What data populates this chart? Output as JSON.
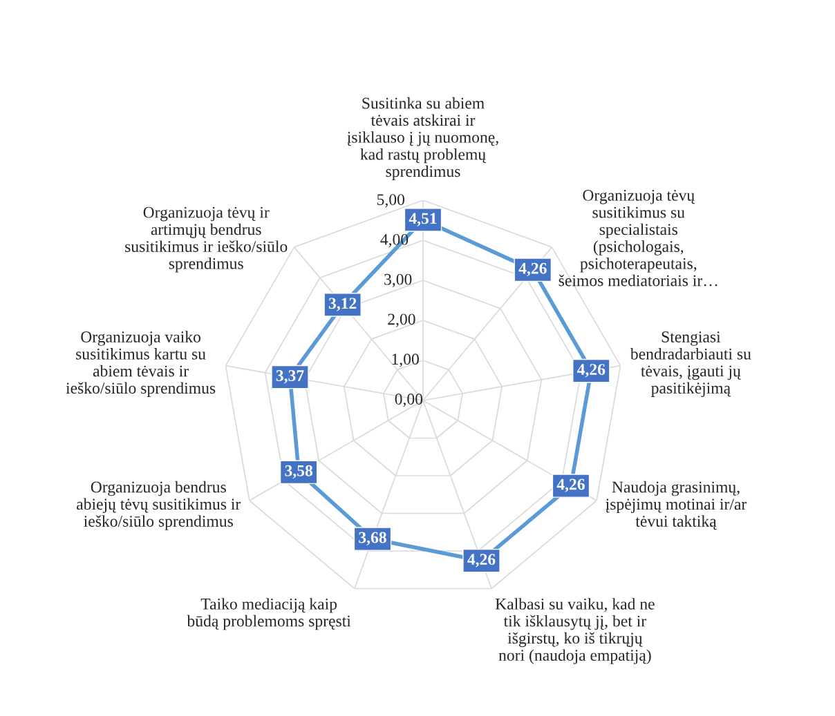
{
  "chart_data": {
    "type": "radar",
    "categories": [
      "Susitinka su abiem\ntėvais atskirai ir\nįsiklauso į jų nuomonę,\nkad rastų problemų\nsprendimus",
      "Organizuoja tėvų\nsusitikimus su\nspecialistais\n(psichologais,\npsichoterapeutais,\nšeimos mediatoriais ir…",
      "Stengiasi\nbendradarbiauti su\ntėvais, įgauti jų\npasitikėjimą",
      "Naudoja grasinimų,\nįspėjimų motinai ir/ar\ntėvui taktiką",
      "Kalbasi su vaiku, kad ne\ntik išklausytų jį, bet ir\nišgirstų, ko iš tikrųjų\nnori (naudoja empatiją)",
      "Taiko mediaciją kaip\nbūdą problemoms spręsti",
      "Organizuoja bendrus\nabiejų tėvų susitikimus ir\nieško/siūlo sprendimus",
      "Organizuoja vaiko\nsusitikimus kartu su\nabiem tėvais ir\nieško/siūlo sprendimus",
      "Organizuoja tėvų ir\nartimųjų bendrus\nsusitikimus ir ieško/siūlo\nsprendimus"
    ],
    "series": [
      {
        "color": "#5b9bd5",
        "values": [
          4.51,
          4.26,
          4.26,
          4.26,
          4.26,
          3.68,
          3.58,
          3.37,
          3.12
        ],
        "value_labels": [
          "4,51",
          "4,26",
          "4,26",
          "4,26",
          "4,26",
          "3,68",
          "3,58",
          "3,37",
          "3,12"
        ]
      }
    ],
    "ylim": [
      0,
      5
    ],
    "yticks": [
      {
        "value": 0,
        "label": "0,00"
      },
      {
        "value": 1,
        "label": "1,00"
      },
      {
        "value": 2,
        "label": "2,00"
      },
      {
        "value": 3,
        "label": "3,00"
      },
      {
        "value": 4,
        "label": "4,00"
      },
      {
        "value": 5,
        "label": "5,00"
      }
    ],
    "grid": true,
    "line_style": "solid"
  }
}
